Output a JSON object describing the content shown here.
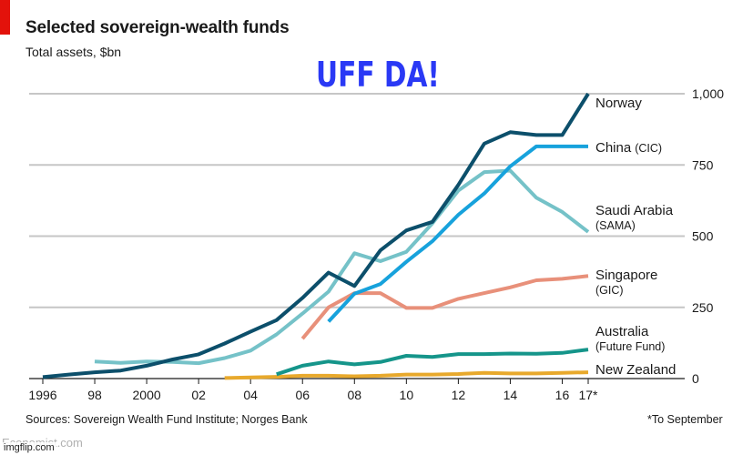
{
  "title": "Selected sovereign-wealth funds",
  "subtitle": "Total assets, $bn",
  "overlay_text": "UFF DA!",
  "source": "Sources: Sovereign Wealth Fund Institute; Norges Bank",
  "footnote": "*To September",
  "watermarks": {
    "economist": "Economist.com",
    "imgflip": "imgflip.com"
  },
  "colors": {
    "norway": "#0c4f6b",
    "china": "#17a2dc",
    "saudi": "#75c2c8",
    "singapore": "#e8907a",
    "australia": "#15958a",
    "new_zealand": "#e8a92c",
    "grid": "#c6c6c6",
    "red_tag": "#e3120b"
  },
  "chart_data": {
    "type": "line",
    "title": "Selected sovereign-wealth funds",
    "subtitle": "Total assets, $bn",
    "xlabel": "",
    "ylabel": "",
    "x_ticks": [
      "1996",
      "98",
      "2000",
      "02",
      "04",
      "06",
      "08",
      "10",
      "12",
      "14",
      "16",
      "17*"
    ],
    "y_ticks": [
      "0",
      "250",
      "500",
      "750",
      "1,000"
    ],
    "ylim": [
      0,
      1000
    ],
    "xlim": [
      1996,
      2017.5
    ],
    "grid": true,
    "legend": "labels at right end of lines",
    "series": [
      {
        "name": "Norway",
        "color_key": "norway",
        "x": [
          1996,
          1997,
          1998,
          1999,
          2000,
          2001,
          2002,
          2003,
          2004,
          2005,
          2006,
          2007,
          2008,
          2009,
          2010,
          2011,
          2012,
          2013,
          2014,
          2015,
          2016,
          2017
        ],
        "values": [
          5,
          14,
          22,
          28,
          45,
          67,
          85,
          123,
          165,
          205,
          283,
          372,
          325,
          450,
          520,
          550,
          680,
          825,
          865,
          855,
          855,
          1000
        ]
      },
      {
        "name": "China (CIC)",
        "color_key": "china",
        "x": [
          2007,
          2008,
          2009,
          2010,
          2011,
          2012,
          2013,
          2014,
          2015,
          2016,
          2017
        ],
        "values": [
          200,
          298,
          332,
          410,
          482,
          575,
          650,
          745,
          815,
          815,
          815
        ]
      },
      {
        "name": "Saudi Arabia (SAMA)",
        "color_key": "saudi",
        "x": [
          1998,
          1999,
          2000,
          2001,
          2002,
          2003,
          2004,
          2005,
          2006,
          2007,
          2008,
          2009,
          2010,
          2011,
          2012,
          2013,
          2014,
          2015,
          2016,
          2017
        ],
        "values": [
          60,
          55,
          60,
          58,
          54,
          72,
          98,
          155,
          228,
          305,
          440,
          412,
          445,
          545,
          660,
          725,
          730,
          635,
          585,
          515
        ]
      },
      {
        "name": "Singapore (GIC)",
        "color_key": "singapore",
        "x": [
          2006,
          2007,
          2008,
          2009,
          2010,
          2011,
          2012,
          2013,
          2014,
          2015,
          2016,
          2017
        ],
        "values": [
          140,
          250,
          300,
          300,
          248,
          248,
          280,
          300,
          320,
          345,
          350,
          360
        ]
      },
      {
        "name": "Australia (Future Fund)",
        "color_key": "australia",
        "x": [
          2005,
          2006,
          2007,
          2008,
          2009,
          2010,
          2011,
          2012,
          2013,
          2014,
          2015,
          2016,
          2017
        ],
        "values": [
          15,
          45,
          60,
          50,
          58,
          80,
          76,
          86,
          86,
          88,
          87,
          90,
          102
        ]
      },
      {
        "name": "New Zealand",
        "color_key": "new_zealand",
        "x": [
          2003,
          2004,
          2005,
          2006,
          2007,
          2008,
          2009,
          2010,
          2011,
          2012,
          2013,
          2014,
          2015,
          2016,
          2017
        ],
        "values": [
          2,
          4,
          6,
          10,
          10,
          8,
          10,
          14,
          14,
          16,
          20,
          18,
          18,
          20,
          22
        ]
      }
    ],
    "series_labels": [
      {
        "key": "norway",
        "line1": "Norway",
        "line2": ""
      },
      {
        "key": "china",
        "line1": "China",
        "line1_extra": "(CIC)",
        "line2": ""
      },
      {
        "key": "saudi",
        "line1": "Saudi Arabia",
        "line2": "(SAMA)"
      },
      {
        "key": "singapore",
        "line1": "Singapore",
        "line2": "(GIC)"
      },
      {
        "key": "australia",
        "line1": "Australia",
        "line2": "(Future Fund)"
      },
      {
        "key": "new_zealand",
        "line1": "New Zealand",
        "line2": ""
      }
    ]
  }
}
